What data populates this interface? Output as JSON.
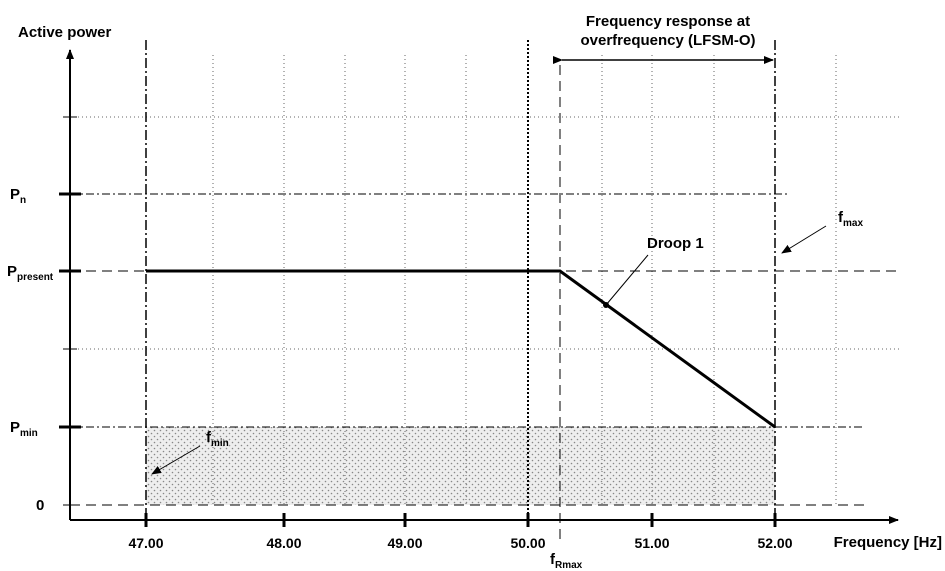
{
  "axes": {
    "y_title": "Active power",
    "x_title": "Frequency [Hz]"
  },
  "x_ticks": [
    "47.00",
    "48.00",
    "49.00",
    "50.00",
    "51.00",
    "52.00"
  ],
  "y_labels": {
    "pn_main": "P",
    "pn_sub": "n",
    "ppresent_main": "P",
    "ppresent_sub": "present",
    "pmin_main": "P",
    "pmin_sub": "min",
    "zero": "0"
  },
  "annotations": {
    "range_title_1": "Frequency response at",
    "range_title_2": "overfrequency (LFSM-O)",
    "droop": "Droop 1",
    "fmax_main": "f",
    "fmax_sub": "max",
    "fmin_main": "f",
    "fmin_sub": "min",
    "frmax_main": "f",
    "frmax_sub": "Rmax"
  },
  "chart_data": {
    "type": "line",
    "xlabel": "Frequency [Hz]",
    "ylabel": "Active power",
    "xlim": [
      46.45,
      53.0
    ],
    "series": [
      {
        "x": [
          47.0,
          50.25,
          52.0
        ],
        "y": [
          "Ppresent",
          "Ppresent",
          "Pmin"
        ]
      }
    ],
    "annotations": [
      "Droop 1",
      "fmax",
      "fmin",
      "fRmax",
      "Frequency response at overfrequency (LFSM-O)"
    ],
    "grid": true
  }
}
